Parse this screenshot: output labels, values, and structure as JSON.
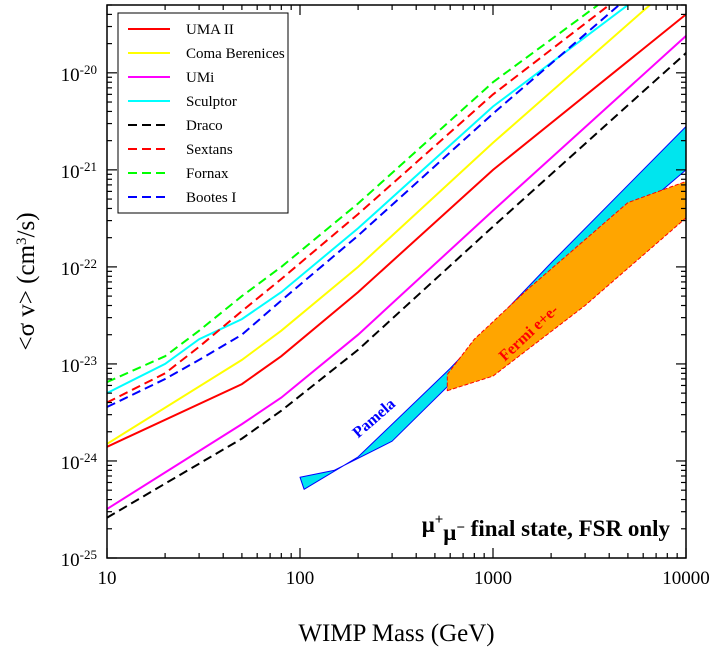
{
  "chart_data": {
    "type": "line",
    "title": "",
    "xlabel": "WIMP Mass (GeV)",
    "ylabel_main": "<σ v> (cm",
    "ylabel_sup": "3",
    "ylabel_tail": "/s)",
    "xscale": "log",
    "yscale": "log",
    "xlim": [
      10,
      10000
    ],
    "ylim": [
      1e-25,
      5e-20
    ],
    "x_ticks": [
      {
        "value": 10,
        "label": "10"
      },
      {
        "value": 100,
        "label": "100"
      },
      {
        "value": 1000,
        "label": "1000"
      },
      {
        "value": 10000,
        "label": "10000"
      }
    ],
    "y_ticks": [
      {
        "value": 1e-25,
        "base": "10",
        "exp": "-25"
      },
      {
        "value": 1e-24,
        "base": "10",
        "exp": "-24"
      },
      {
        "value": 1e-23,
        "base": "10",
        "exp": "-23"
      },
      {
        "value": 1e-22,
        "base": "10",
        "exp": "-22"
      },
      {
        "value": 1e-21,
        "base": "10",
        "exp": "-21"
      },
      {
        "value": 1e-20,
        "base": "10",
        "exp": "-20"
      }
    ],
    "legend_position": "top-left",
    "series": [
      {
        "name": "UMA II",
        "color": "#ff0000",
        "dash": "solid",
        "x": [
          10,
          50,
          80,
          200,
          1000,
          10000
        ],
        "y": [
          1.4e-24,
          6.2e-24,
          1.2e-23,
          5.5e-23,
          1e-21,
          4e-20
        ]
      },
      {
        "name": "Coma Berenices",
        "color": "#ffff00",
        "dash": "solid",
        "x": [
          10,
          50,
          80,
          200,
          1000,
          6500
        ],
        "y": [
          1.5e-24,
          1.1e-23,
          2.2e-23,
          1e-22,
          1.9e-21,
          5e-20
        ]
      },
      {
        "name": "UMi",
        "color": "#ff00ff",
        "dash": "solid",
        "x": [
          10,
          50,
          80,
          200,
          1000,
          10000
        ],
        "y": [
          3.2e-25,
          2.4e-24,
          4.5e-24,
          2e-23,
          3.8e-22,
          2.4e-20
        ]
      },
      {
        "name": "Sculptor",
        "color": "#00ffff",
        "dash": "solid",
        "x": [
          10,
          20,
          30,
          50,
          80,
          200,
          1000,
          5000
        ],
        "y": [
          5e-24,
          1e-23,
          1.8e-23,
          2.9e-23,
          5.5e-23,
          2.5e-22,
          4.5e-21,
          5e-20
        ]
      },
      {
        "name": "Draco",
        "color": "#000000",
        "dash": "dashed",
        "x": [
          10,
          50,
          80,
          200,
          1000,
          10000
        ],
        "y": [
          2.6e-25,
          1.7e-24,
          3.3e-24,
          1.4e-23,
          2.6e-22,
          1.6e-20
        ]
      },
      {
        "name": "Sextans",
        "color": "#ff0000",
        "dash": "dashed",
        "x": [
          10,
          20,
          30,
          50,
          80,
          200,
          1000,
          4000
        ],
        "y": [
          4e-24,
          8e-24,
          1.5e-23,
          3.5e-23,
          7.5e-23,
          3.5e-22,
          6e-21,
          5e-20
        ]
      },
      {
        "name": "Fornax",
        "color": "#00ff00",
        "dash": "dashed",
        "x": [
          10,
          20,
          30,
          50,
          80,
          200,
          1000,
          3500
        ],
        "y": [
          6.5e-24,
          1.2e-23,
          2.2e-23,
          5e-23,
          1e-22,
          4.5e-22,
          8e-21,
          5e-20
        ]
      },
      {
        "name": "Bootes I",
        "color": "#0000ff",
        "dash": "dashed",
        "x": [
          10,
          20,
          30,
          50,
          80,
          200,
          1000,
          4500
        ],
        "y": [
          3.6e-24,
          7e-24,
          1.1e-23,
          2e-23,
          4.5e-23,
          2.1e-22,
          3.8e-21,
          5e-20
        ]
      }
    ],
    "regions": [
      {
        "name": "Pamela",
        "fill": "#00e5ee",
        "stroke": "#0000ff",
        "points": [
          [
            105,
            5.1e-25
          ],
          [
            200,
            1.1e-24
          ],
          [
            600,
            9e-24
          ],
          [
            2000,
            1.1e-22
          ],
          [
            10000,
            2.8e-21
          ],
          [
            10000,
            1e-21
          ],
          [
            3000,
            1.3e-22
          ],
          [
            1000,
            1.7e-23
          ],
          [
            300,
            1.6e-24
          ],
          [
            150,
            8e-25
          ],
          [
            100,
            6.8e-25
          ]
        ]
      },
      {
        "name": "Fermi e+e-",
        "fill": "#ffa500",
        "stroke": "#ff0000",
        "points": [
          [
            580,
            5.3e-24
          ],
          [
            1000,
            7.5e-24
          ],
          [
            3000,
            4e-23
          ],
          [
            10000,
            3.2e-22
          ],
          [
            10000,
            7.6e-22
          ],
          [
            5000,
            4.6e-22
          ],
          [
            1500,
            5.8e-23
          ],
          [
            800,
            1.8e-23
          ],
          [
            580,
            7.8e-24
          ]
        ]
      }
    ],
    "region_labels": [
      {
        "text": "Pamela",
        "color": "#0000ff",
        "x": 200,
        "y": 1.7e-24,
        "angle": -41
      },
      {
        "text": "Fermi e+e-",
        "color": "#ff0000",
        "x": 1150,
        "y": 1.05e-23,
        "angle": -43
      }
    ],
    "annotation": {
      "mu_text": "μ",
      "mu_sup1": "+",
      "mu_sup2": "−",
      "tail": " final state, FSR only"
    }
  }
}
